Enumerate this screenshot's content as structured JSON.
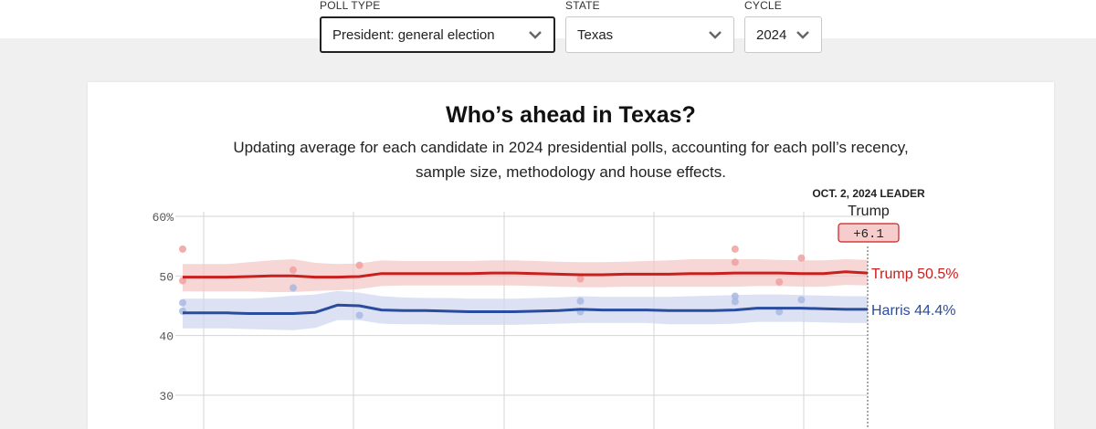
{
  "filters": [
    {
      "label": "POLL TYPE",
      "value": "President: general election"
    },
    {
      "label": "STATE",
      "value": "Texas"
    },
    {
      "label": "CYCLE",
      "value": "2024"
    }
  ],
  "card": {
    "title": "Who’s ahead in Texas?",
    "subtitle": "Updating average for each candidate in 2024 presidential polls, accounting for each poll’s recency, sample size, methodology and house effects."
  },
  "leader": {
    "date_label": "OCT. 2, 2024 LEADER",
    "name": "Trump",
    "margin": "+6.1"
  },
  "colors": {
    "trump": "#c8201e",
    "harris": "#2a4c9e",
    "trump_band": "#f4c4c4",
    "harris_band": "#cdd6ee",
    "trump_dot": "#f0a0a0",
    "harris_dot": "#a8b8e0"
  },
  "chart_data": {
    "type": "line",
    "y_tick_labels": [
      "60%",
      "50",
      "40",
      "30"
    ],
    "yticks": [
      60,
      50,
      40,
      30
    ],
    "ylim": [
      26,
      62
    ],
    "x": [
      0,
      1,
      2,
      3,
      4,
      5,
      6,
      7,
      8,
      9,
      10,
      11,
      12,
      13,
      14,
      15,
      16,
      17,
      18,
      19,
      20,
      21,
      22,
      23,
      24,
      25,
      26,
      27,
      28,
      29,
      30,
      31
    ],
    "series": [
      {
        "name": "Trump",
        "label": "Trump 50.5%",
        "values": [
          49.8,
          49.8,
          49.8,
          49.9,
          50.0,
          50.0,
          49.8,
          49.8,
          49.9,
          50.4,
          50.4,
          50.4,
          50.4,
          50.4,
          50.5,
          50.5,
          50.4,
          50.3,
          50.2,
          50.2,
          50.3,
          50.3,
          50.3,
          50.4,
          50.4,
          50.5,
          50.5,
          50.5,
          50.4,
          50.4,
          50.7,
          50.5
        ],
        "band_upper": [
          52.0,
          52.0,
          52.0,
          52.3,
          52.6,
          52.8,
          52.2,
          52.0,
          52.1,
          52.6,
          52.5,
          52.5,
          52.5,
          52.5,
          52.6,
          52.6,
          52.5,
          52.4,
          52.3,
          52.3,
          52.4,
          52.5,
          52.6,
          52.8,
          52.8,
          52.8,
          52.8,
          52.7,
          52.6,
          52.6,
          52.8,
          52.7
        ],
        "band_lower": [
          47.4,
          47.4,
          47.4,
          47.4,
          47.3,
          47.3,
          47.5,
          47.6,
          47.8,
          48.3,
          48.4,
          48.4,
          48.4,
          48.4,
          48.4,
          48.4,
          48.3,
          48.2,
          48.1,
          48.1,
          48.2,
          48.2,
          48.2,
          48.2,
          48.2,
          48.2,
          48.3,
          48.3,
          48.2,
          48.2,
          48.5,
          48.4
        ],
        "points": [
          [
            0,
            54.5
          ],
          [
            0,
            49.2
          ],
          [
            5,
            51.0
          ],
          [
            8,
            51.8
          ],
          [
            18,
            49.5
          ],
          [
            25,
            54.5
          ],
          [
            25,
            52.3
          ],
          [
            27,
            49.0
          ],
          [
            28,
            53.0
          ]
        ]
      },
      {
        "name": "Harris",
        "label": "Harris 44.4%",
        "values": [
          43.8,
          43.8,
          43.8,
          43.7,
          43.7,
          43.7,
          43.9,
          45.1,
          45.0,
          44.3,
          44.2,
          44.2,
          44.1,
          44.0,
          44.0,
          44.0,
          44.1,
          44.2,
          44.4,
          44.3,
          44.3,
          44.3,
          44.2,
          44.2,
          44.2,
          44.3,
          44.6,
          44.6,
          44.6,
          44.5,
          44.4,
          44.4
        ],
        "band_upper": [
          46.2,
          46.2,
          46.2,
          46.2,
          46.4,
          46.7,
          46.9,
          47.5,
          47.2,
          46.6,
          46.4,
          46.3,
          46.3,
          46.2,
          46.2,
          46.2,
          46.3,
          46.4,
          46.6,
          46.5,
          46.5,
          46.5,
          46.5,
          46.6,
          46.7,
          46.8,
          46.9,
          46.9,
          46.8,
          46.7,
          46.6,
          46.6
        ],
        "band_lower": [
          41.2,
          41.2,
          41.2,
          41.1,
          41.0,
          40.9,
          41.3,
          42.6,
          42.6,
          42.0,
          41.9,
          41.9,
          41.8,
          41.8,
          41.8,
          41.8,
          41.9,
          42.0,
          42.1,
          42.1,
          42.1,
          42.1,
          41.9,
          41.9,
          41.9,
          42.0,
          42.3,
          42.3,
          42.3,
          42.2,
          42.1,
          42.1
        ],
        "points": [
          [
            0,
            45.5
          ],
          [
            0,
            44.1
          ],
          [
            5,
            48.0
          ],
          [
            8,
            43.4
          ],
          [
            18,
            45.8
          ],
          [
            18,
            44.0
          ],
          [
            25,
            46.6
          ],
          [
            25,
            45.7
          ],
          [
            27,
            44.0
          ],
          [
            28,
            46.0
          ]
        ]
      }
    ]
  }
}
